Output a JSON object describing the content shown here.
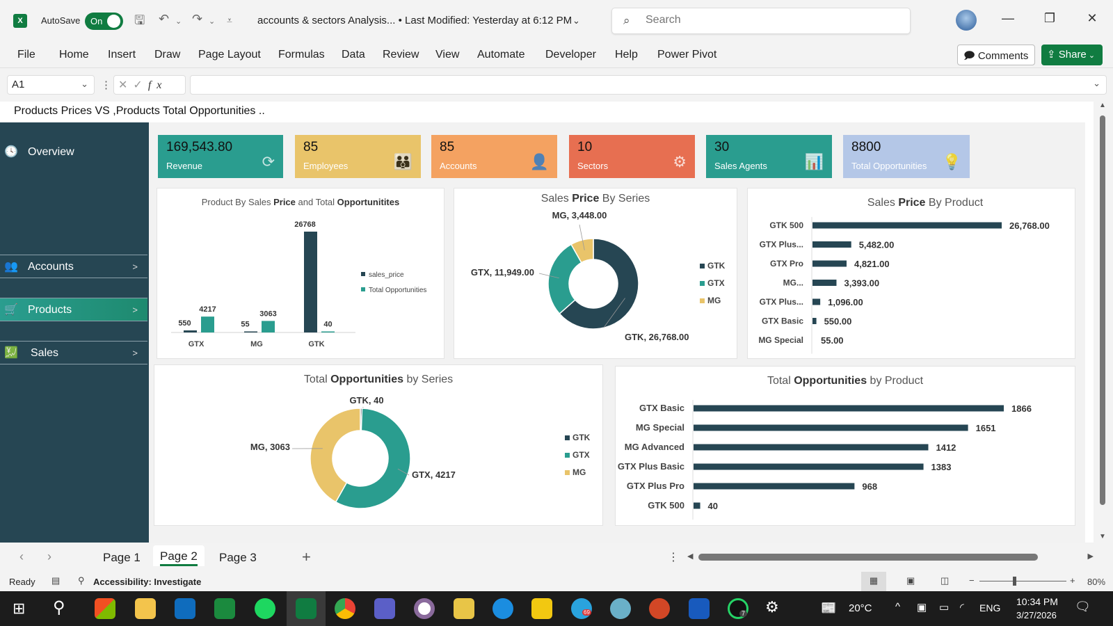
{
  "titlebar": {
    "autosave_label": "AutoSave",
    "autosave_state": "On",
    "doc_title": "accounts & sectors Analysis...  •  Last Modified: Yesterday at 6:12 PM",
    "search_placeholder": "Search"
  },
  "menu": {
    "items": [
      "File",
      "Home",
      "Insert",
      "Draw",
      "Page Layout",
      "Formulas",
      "Data",
      "Review",
      "View",
      "Automate",
      "Developer",
      "Help",
      "Power Pivot"
    ],
    "comments_label": "Comments",
    "share_label": "Share"
  },
  "formula_bar": {
    "cell_ref": "A1",
    "formula": ""
  },
  "sheet": {
    "title": "Products Prices  VS  ,Products Total Opportunities ..",
    "sidebar": [
      {
        "label": "Overview",
        "icon": "clock-icon",
        "arrow": ""
      },
      {
        "label": "Accounts",
        "icon": "people-icon",
        "arrow": ">"
      },
      {
        "label": "Products",
        "icon": "cart-icon",
        "arrow": ">"
      },
      {
        "label": "Sales",
        "icon": "sales-growth-icon",
        "arrow": ">"
      }
    ],
    "kpis": [
      {
        "value": "169,543.80",
        "label": "Revenue",
        "color": "#2a9d8f",
        "icon": "dollar-cycle-icon"
      },
      {
        "value": "85",
        "label": "Employees",
        "color": "#e9c46a",
        "icon": "team-icon"
      },
      {
        "value": "85",
        "label": "Accounts",
        "color": "#f4a261",
        "icon": "user-icon"
      },
      {
        "value": "10",
        "label": "Sectors",
        "color": "#e76f51",
        "icon": "gear-chart-icon"
      },
      {
        "value": "30",
        "label": "Sales Agents",
        "color": "#2a9d8f",
        "icon": "agents-chart-icon"
      },
      {
        "value": "8800",
        "label": "Total Opportunities",
        "color": "#b4c7e7",
        "icon": "idea-hand-icon"
      }
    ]
  },
  "colors": {
    "dark": "#264653",
    "teal": "#2a9d8f",
    "gold": "#e9c46a"
  },
  "chart_data": [
    {
      "type": "bar",
      "title_parts": [
        "Product By Sales ",
        "Price",
        " and Total ",
        "Opportunitites"
      ],
      "categories": [
        "GTX",
        "MG",
        "GTK"
      ],
      "series": [
        {
          "name": "sales_price",
          "values": [
            550,
            55,
            26768
          ]
        },
        {
          "name": "Total Opportunities",
          "values": [
            4217,
            3063,
            40
          ]
        }
      ],
      "legend": "right"
    },
    {
      "type": "pie",
      "donut": true,
      "title_parts": [
        "Sales ",
        "Price",
        " By Series",
        ""
      ],
      "labels": [
        "GTK",
        "GTX",
        "MG"
      ],
      "values": [
        26768,
        11949,
        3448
      ],
      "data_labels": [
        "GTK, 26,768.00",
        "GTX, 11,949.00",
        "MG, 3,448.00"
      ],
      "legend": "right"
    },
    {
      "type": "bar",
      "orientation": "horizontal",
      "title_parts": [
        "Sales ",
        "Price",
        " By Product",
        ""
      ],
      "categories": [
        "GTK 500",
        "GTX Plus...",
        "GTX Pro",
        "MG...",
        "GTX Plus...",
        "GTX Basic",
        "MG Special"
      ],
      "values": [
        26768,
        5482,
        4821,
        3393,
        1096,
        550,
        55
      ],
      "data_labels": [
        "26,768.00",
        "5,482.00",
        "4,821.00",
        "3,393.00",
        "1,096.00",
        "550.00",
        "55.00"
      ]
    },
    {
      "type": "pie",
      "donut": true,
      "title_parts": [
        "Total ",
        "Opportunities",
        " by Series",
        ""
      ],
      "labels": [
        "GTK",
        "GTX",
        "MG"
      ],
      "values": [
        40,
        4217,
        3063
      ],
      "data_labels": [
        "GTK, 40",
        "GTX, 4217",
        "MG, 3063"
      ],
      "legend": "right"
    },
    {
      "type": "bar",
      "orientation": "horizontal",
      "title_parts": [
        "Total ",
        "Opportunities",
        " by Product",
        ""
      ],
      "categories": [
        "GTX Basic",
        "MG Special",
        "MG Advanced",
        "GTX Plus Basic",
        "GTX Plus Pro",
        "GTK 500"
      ],
      "values": [
        1866,
        1651,
        1412,
        1383,
        968,
        40
      ],
      "data_labels": [
        "1866",
        "1651",
        "1412",
        "1383",
        "968",
        "40"
      ]
    }
  ],
  "tabs": {
    "items": [
      "Page 1",
      "Page 2",
      "Page 3"
    ],
    "active": "Page 2",
    "add": "+"
  },
  "status": {
    "ready": "Ready",
    "accessibility": "Accessibility: Investigate",
    "zoom": "80%"
  },
  "taskbar": {
    "weather": "20°C",
    "lang": "ENG",
    "time": "10:34 PM",
    "date": "3/27/2026",
    "whatsapp_badge": "7",
    "telegram_badge": "69"
  }
}
